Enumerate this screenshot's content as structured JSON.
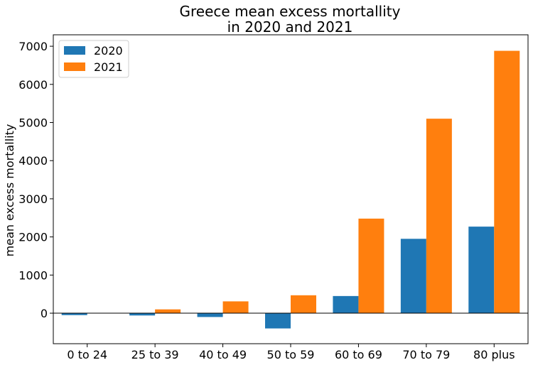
{
  "chart_data": {
    "type": "bar",
    "title_lines": [
      "Greece mean excess mortallity",
      "in 2020 and 2021"
    ],
    "xlabel": "",
    "ylabel": "mean excess mortallity",
    "categories": [
      "0 to 24",
      "25 to 39",
      "40 to 49",
      "50 to 59",
      "60 to 69",
      "70 to 79",
      "80 plus"
    ],
    "series": [
      {
        "name": "2020",
        "color": "#1f77b4",
        "values": [
          -50,
          -60,
          -100,
          -400,
          450,
          1950,
          2270
        ]
      },
      {
        "name": "2021",
        "color": "#ff7f0e",
        "values": [
          0,
          100,
          310,
          470,
          2480,
          5100,
          6880
        ]
      }
    ],
    "ylim": [
      -800,
      7300
    ],
    "yticks": [
      0,
      1000,
      2000,
      3000,
      4000,
      5000,
      6000,
      7000
    ],
    "zero_line": true,
    "grid": false,
    "legend_position": "top-left"
  }
}
